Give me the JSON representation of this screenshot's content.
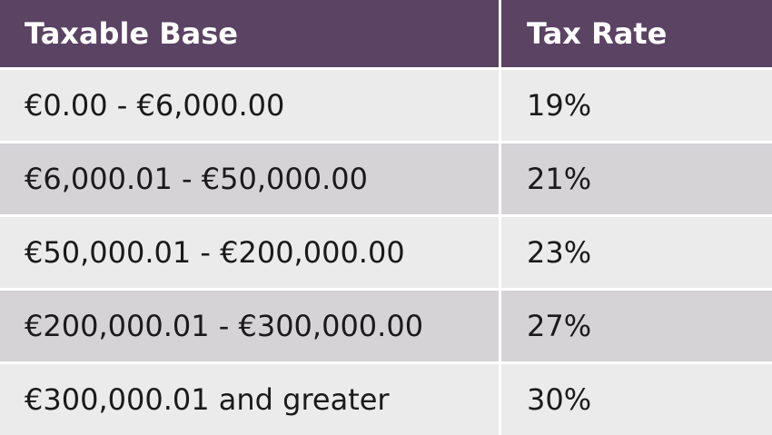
{
  "table": {
    "headers": {
      "taxable_base": "Taxable Base",
      "tax_rate": "Tax Rate"
    },
    "rows": [
      {
        "taxable_base": "€0.00 - €6,000.00",
        "tax_rate": "19%"
      },
      {
        "taxable_base": "€6,000.01 - €50,000.00",
        "tax_rate": "21%"
      },
      {
        "taxable_base": "€50,000.01 - €200,000.00",
        "tax_rate": "23%"
      },
      {
        "taxable_base": "€200,000.01 - €300,000.00",
        "tax_rate": "27%"
      },
      {
        "taxable_base": "€300,000.01 and greater",
        "tax_rate": "30%"
      }
    ]
  },
  "colors": {
    "header_bg": "#5a4363",
    "header_text": "#ffffff",
    "row_light": "#ebebeb",
    "row_dark": "#d5d3d6",
    "body_text": "#1a1a1a"
  }
}
